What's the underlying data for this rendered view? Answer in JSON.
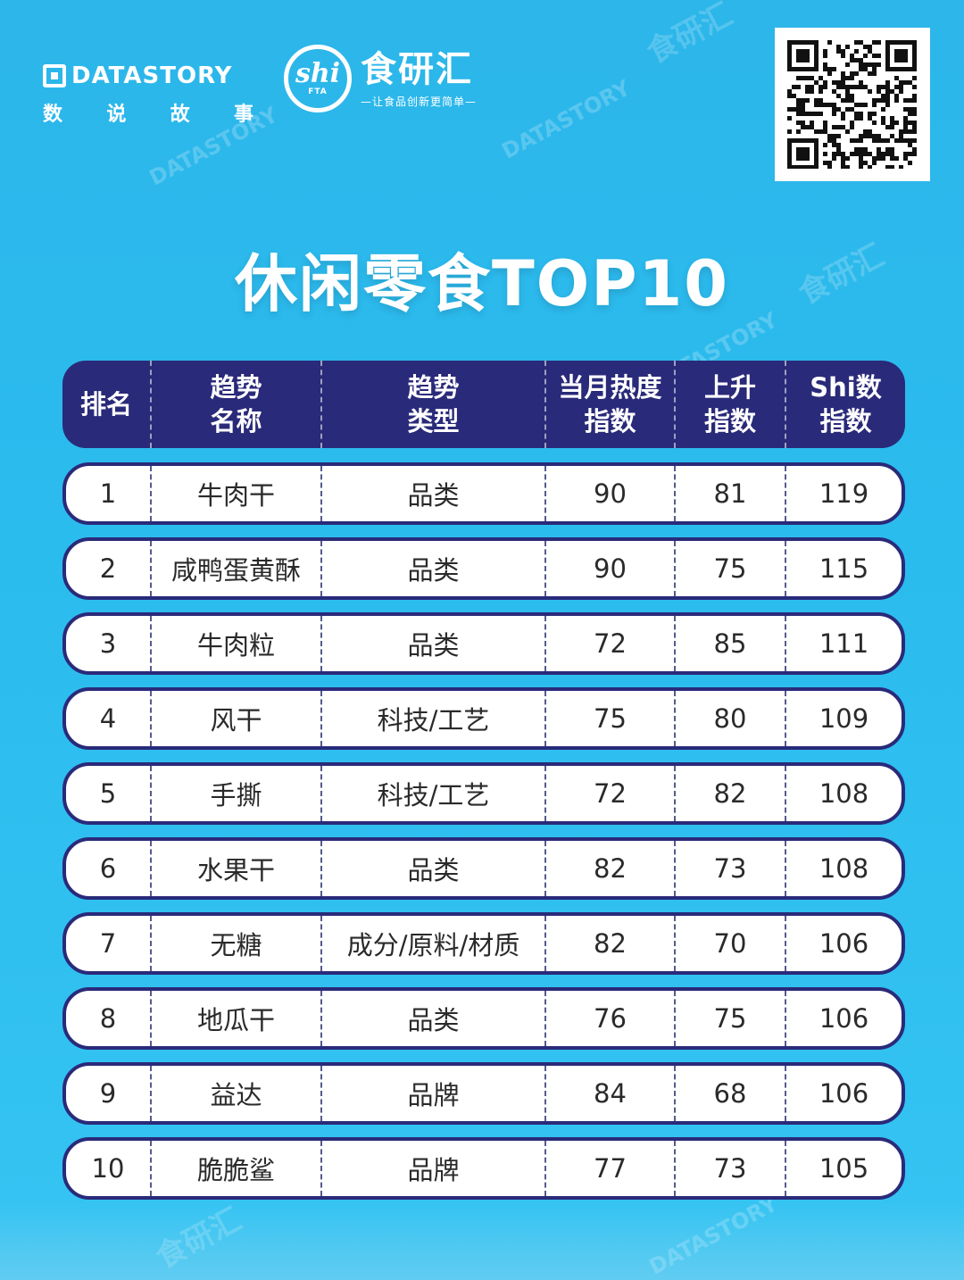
{
  "branding": {
    "datastory_name": "DATASTORY",
    "datastory_sub": [
      "数",
      "说",
      "故",
      "事"
    ],
    "shi_mark": "shi",
    "shi_fta": "FTA",
    "shi_title": "食研汇",
    "shi_slogan": "—让食品创新更简单—"
  },
  "page_title": "休闲零食TOP10",
  "table": {
    "headers": [
      "排名",
      "趋势\n名称",
      "趋势\n类型",
      "当月热度\n指数",
      "上升\n指数",
      "Shi数\n指数"
    ],
    "rows": [
      [
        "1",
        "牛肉干",
        "品类",
        "90",
        "81",
        "119"
      ],
      [
        "2",
        "咸鸭蛋黄酥",
        "品类",
        "90",
        "75",
        "115"
      ],
      [
        "3",
        "牛肉粒",
        "品类",
        "72",
        "85",
        "111"
      ],
      [
        "4",
        "风干",
        "科技/工艺",
        "75",
        "80",
        "109"
      ],
      [
        "5",
        "手撕",
        "科技/工艺",
        "72",
        "82",
        "108"
      ],
      [
        "6",
        "水果干",
        "品类",
        "82",
        "73",
        "108"
      ],
      [
        "7",
        "无糖",
        "成分/原料/材质",
        "82",
        "70",
        "106"
      ],
      [
        "8",
        "地瓜干",
        "品类",
        "76",
        "75",
        "106"
      ],
      [
        "9",
        "益达",
        "品牌",
        "84",
        "68",
        "106"
      ],
      [
        "10",
        "脆脆鲨",
        "品牌",
        "77",
        "73",
        "105"
      ]
    ]
  },
  "colors": {
    "background": "#2bbcee",
    "table_dark": "#2a2a7a",
    "row_bg": "#ffffff"
  },
  "icons": [
    "datastory-logo-icon",
    "shi-logo-icon",
    "qr-code-icon"
  ]
}
